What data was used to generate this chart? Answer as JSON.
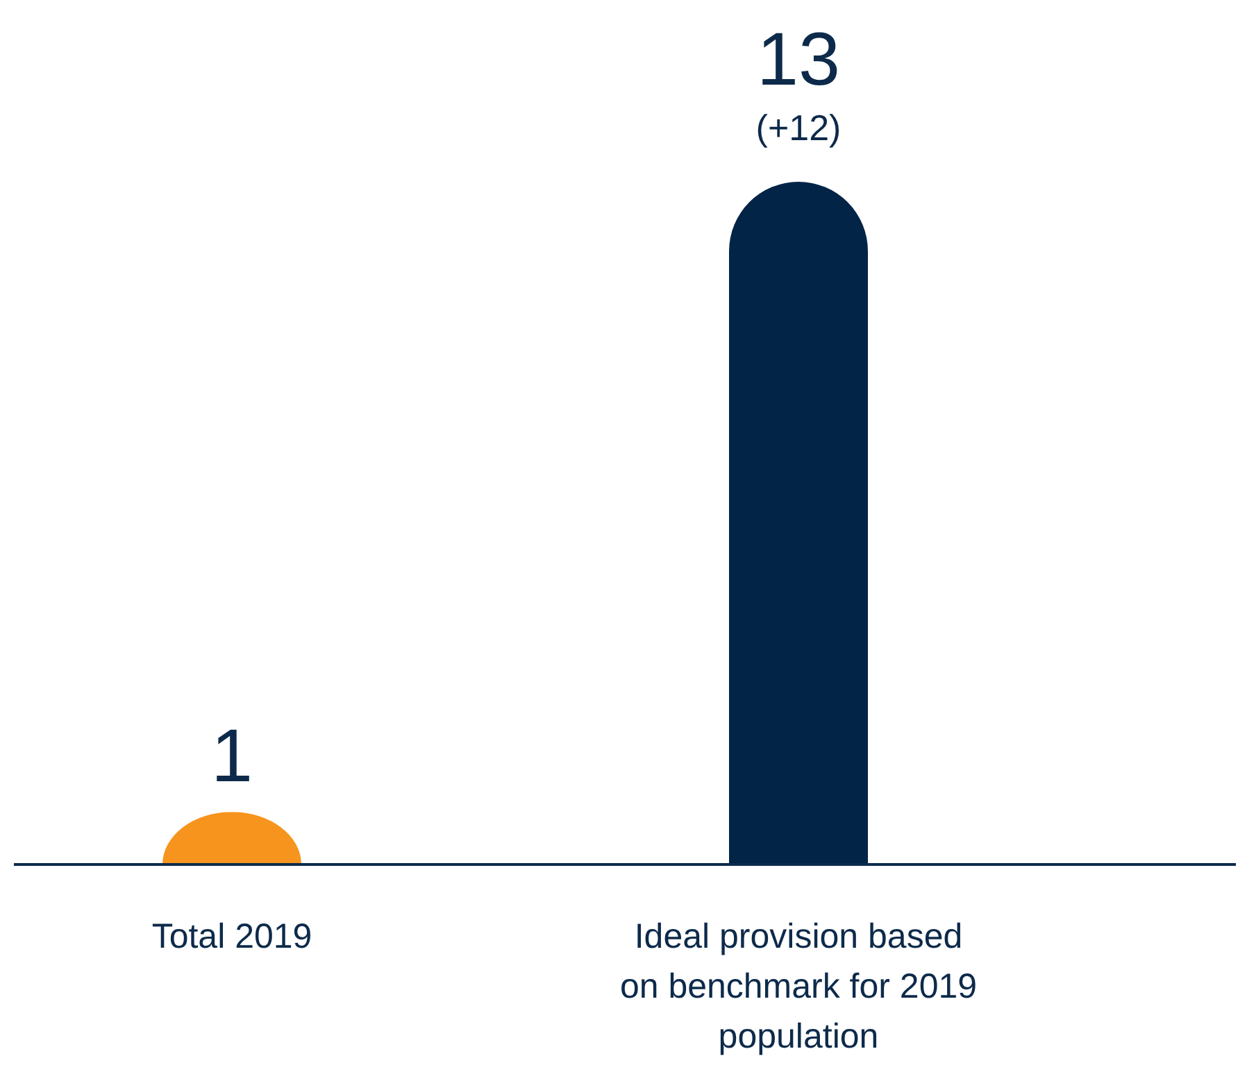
{
  "chart_data": {
    "type": "bar",
    "categories": [
      "Total 2019",
      "Ideal provision based on benchmark for 2019 population"
    ],
    "values": [
      1,
      13
    ],
    "colors": [
      "#f7941d",
      "#012447"
    ],
    "ylim": [
      0,
      13
    ],
    "data_labels": true,
    "tick_labels": "x",
    "annotations": [
      {
        "text": "(+12)",
        "x": "Ideal provision based on benchmark for 2019 population",
        "y": 13
      }
    ]
  }
}
